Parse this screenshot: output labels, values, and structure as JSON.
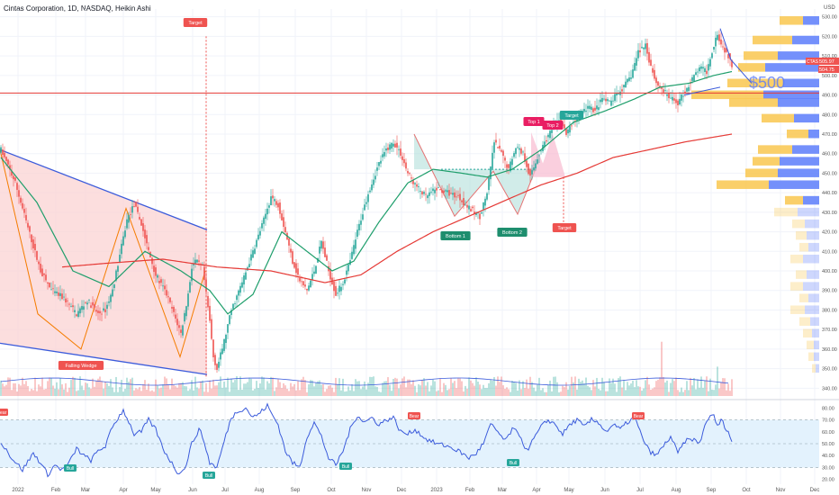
{
  "header": {
    "title": "Cintas Corporation, 1D, NASDAQ, Heikin Ashi"
  },
  "currency_label": "USD",
  "colors": {
    "up": "#26a69a",
    "down": "#ef5350",
    "sma_short": "#1e9e6b",
    "sma_long": "#e53935",
    "pattern_fill": "#fbd3d3",
    "trendline": "#3b5bdb",
    "vp_up": "#f9c74f",
    "vp_down": "#5c7cfa",
    "rsi_line": "#3b5bdb",
    "rsi_band": "#e3f2fd",
    "price_line": "#e53935"
  },
  "chart_data": [
    {
      "type": "candlestick",
      "title": "Cintas Corporation, 1D, NASDAQ, Heikin Ashi",
      "x_tick_labels": [
        "2022",
        "Feb",
        "Mar",
        "Apr",
        "May",
        "Jun",
        "Jul",
        "Aug",
        "Sep",
        "Oct",
        "Nov",
        "Dec",
        "2023",
        "Feb",
        "Mar",
        "Apr",
        "May",
        "Jun",
        "Jul",
        "Aug",
        "Sep",
        "Oct",
        "Nov",
        "Dec"
      ],
      "y_ticks": [
        340,
        350,
        360,
        370,
        380,
        390,
        400,
        410,
        420,
        430,
        440,
        450,
        460,
        470,
        480,
        490,
        500,
        510,
        520,
        530
      ],
      "ylim": [
        336,
        534
      ],
      "price_anchors": [
        [
          0,
          462
        ],
        [
          8,
          445
        ],
        [
          15,
          422
        ],
        [
          22,
          400
        ],
        [
          28,
          390
        ],
        [
          35,
          386
        ],
        [
          42,
          378
        ],
        [
          48,
          385
        ],
        [
          54,
          378
        ],
        [
          58,
          380
        ],
        [
          62,
          390
        ],
        [
          66,
          408
        ],
        [
          70,
          426
        ],
        [
          74,
          434
        ],
        [
          78,
          424
        ],
        [
          82,
          410
        ],
        [
          86,
          398
        ],
        [
          92,
          388
        ],
        [
          96,
          378
        ],
        [
          100,
          368
        ],
        [
          104,
          388
        ],
        [
          106,
          402
        ],
        [
          108,
          405
        ],
        [
          112,
          402
        ],
        [
          116,
          374
        ],
        [
          118,
          356
        ],
        [
          120,
          350
        ],
        [
          124,
          364
        ],
        [
          128,
          380
        ],
        [
          134,
          394
        ],
        [
          140,
          410
        ],
        [
          146,
          426
        ],
        [
          150,
          438
        ],
        [
          154,
          434
        ],
        [
          158,
          420
        ],
        [
          162,
          405
        ],
        [
          166,
          395
        ],
        [
          170,
          390
        ],
        [
          174,
          400
        ],
        [
          178,
          415
        ],
        [
          182,
          400
        ],
        [
          186,
          388
        ],
        [
          190,
          394
        ],
        [
          194,
          405
        ],
        [
          198,
          420
        ],
        [
          204,
          440
        ],
        [
          210,
          455
        ],
        [
          214,
          462
        ],
        [
          218,
          466
        ],
        [
          222,
          460
        ],
        [
          226,
          450
        ],
        [
          230,
          444
        ],
        [
          236,
          438
        ],
        [
          242,
          442
        ],
        [
          248,
          440
        ],
        [
          254,
          438
        ],
        [
          260,
          432
        ],
        [
          266,
          428
        ],
        [
          270,
          440
        ],
        [
          274,
          466
        ],
        [
          278,
          460
        ],
        [
          282,
          452
        ],
        [
          286,
          464
        ],
        [
          290,
          460
        ],
        [
          294,
          448
        ],
        [
          298,
          458
        ],
        [
          302,
          466
        ],
        [
          306,
          472
        ],
        [
          310,
          478
        ],
        [
          314,
          470
        ],
        [
          318,
          476
        ],
        [
          322,
          480
        ],
        [
          326,
          484
        ],
        [
          330,
          482
        ],
        [
          334,
          488
        ],
        [
          338,
          486
        ],
        [
          342,
          490
        ],
        [
          346,
          494
        ],
        [
          350,
          500
        ],
        [
          354,
          512
        ],
        [
          358,
          516
        ],
        [
          360,
          508
        ],
        [
          364,
          496
        ],
        [
          368,
          492
        ],
        [
          372,
          488
        ],
        [
          376,
          486
        ],
        [
          380,
          492
        ],
        [
          384,
          498
        ],
        [
          388,
          504
        ],
        [
          392,
          502
        ],
        [
          396,
          516
        ],
        [
          398,
          522
        ],
        [
          400,
          516
        ],
        [
          404,
          510
        ],
        [
          406,
          504
        ]
      ],
      "sma_50_anchors": [
        [
          0,
          458
        ],
        [
          20,
          435
        ],
        [
          40,
          400
        ],
        [
          60,
          392
        ],
        [
          80,
          410
        ],
        [
          100,
          400
        ],
        [
          116,
          390
        ],
        [
          126,
          378
        ],
        [
          140,
          388
        ],
        [
          156,
          420
        ],
        [
          170,
          410
        ],
        [
          184,
          400
        ],
        [
          196,
          405
        ],
        [
          210,
          425
        ],
        [
          226,
          445
        ],
        [
          240,
          452
        ],
        [
          256,
          450
        ],
        [
          270,
          448
        ],
        [
          284,
          452
        ],
        [
          300,
          462
        ],
        [
          318,
          476
        ],
        [
          336,
          482
        ],
        [
          352,
          488
        ],
        [
          366,
          494
        ],
        [
          382,
          496
        ],
        [
          396,
          500
        ],
        [
          406,
          502
        ]
      ],
      "sma_200_anchors": [
        [
          34,
          402
        ],
        [
          60,
          404
        ],
        [
          90,
          406
        ],
        [
          120,
          402
        ],
        [
          150,
          400
        ],
        [
          180,
          394
        ],
        [
          200,
          398
        ],
        [
          220,
          410
        ],
        [
          240,
          420
        ],
        [
          260,
          428
        ],
        [
          280,
          436
        ],
        [
          300,
          444
        ],
        [
          320,
          450
        ],
        [
          340,
          458
        ],
        [
          360,
          462
        ],
        [
          380,
          466
        ],
        [
          406,
          470
        ]
      ],
      "volume_profile": {
        "levels": [
          528,
          518,
          510,
          504,
          496,
          490,
          486,
          478,
          470,
          462,
          456,
          450,
          444,
          436,
          430,
          424,
          418,
          412,
          406,
          398,
          392,
          386,
          380,
          374,
          368,
          362,
          356,
          350
        ],
        "up_volume": [
          26,
          44,
          38,
          30,
          62,
          80,
          54,
          36,
          24,
          38,
          30,
          36,
          58,
          20,
          26,
          14,
          12,
          10,
          14,
          12,
          14,
          10,
          16,
          12,
          10,
          8,
          6,
          4
        ],
        "down_volume": [
          18,
          30,
          46,
          60,
          40,
          62,
          46,
          28,
          12,
          30,
          44,
          46,
          56,
          18,
          24,
          16,
          14,
          12,
          18,
          14,
          18,
          12,
          16,
          10,
          8,
          6,
          6,
          4
        ]
      },
      "pattern_labels": {
        "target_top": "Target",
        "falling_wedge": "Falling Wedge",
        "top1": "Top 1",
        "top2": "Top 2",
        "target_mid": "Target",
        "bottom1": "Bottom 1",
        "bottom2": "Bottom 2",
        "target_low": "Target"
      },
      "annotation_text": "$500",
      "horizontal_line": 491,
      "price_label_1": "505.97",
      "price_label_2": "504.75",
      "ticker_label": "CTAS"
    },
    {
      "type": "line",
      "name": "RSI",
      "y_ticks": [
        20,
        30,
        40,
        50,
        60,
        70,
        80
      ],
      "ylim": [
        16,
        84
      ],
      "band": [
        30,
        70
      ],
      "rsi_anchors": [
        [
          0,
          52
        ],
        [
          6,
          38
        ],
        [
          12,
          28
        ],
        [
          18,
          42
        ],
        [
          22,
          34
        ],
        [
          26,
          24
        ],
        [
          30,
          32
        ],
        [
          34,
          28
        ],
        [
          38,
          34
        ],
        [
          42,
          46
        ],
        [
          46,
          40
        ],
        [
          50,
          36
        ],
        [
          54,
          44
        ],
        [
          58,
          48
        ],
        [
          62,
          64
        ],
        [
          66,
          74
        ],
        [
          68,
          78
        ],
        [
          70,
          72
        ],
        [
          74,
          58
        ],
        [
          78,
          60
        ],
        [
          82,
          70
        ],
        [
          86,
          62
        ],
        [
          90,
          46
        ],
        [
          94,
          36
        ],
        [
          98,
          26
        ],
        [
          102,
          28
        ],
        [
          106,
          50
        ],
        [
          110,
          62
        ],
        [
          112,
          56
        ],
        [
          116,
          34
        ],
        [
          120,
          30
        ],
        [
          124,
          52
        ],
        [
          128,
          72
        ],
        [
          132,
          78
        ],
        [
          136,
          80
        ],
        [
          140,
          72
        ],
        [
          144,
          76
        ],
        [
          148,
          82
        ],
        [
          150,
          76
        ],
        [
          154,
          66
        ],
        [
          158,
          44
        ],
        [
          162,
          34
        ],
        [
          166,
          30
        ],
        [
          170,
          56
        ],
        [
          174,
          68
        ],
        [
          178,
          56
        ],
        [
          182,
          38
        ],
        [
          186,
          32
        ],
        [
          190,
          44
        ],
        [
          194,
          62
        ],
        [
          198,
          74
        ],
        [
          202,
          68
        ],
        [
          206,
          72
        ],
        [
          210,
          66
        ],
        [
          214,
          70
        ],
        [
          218,
          72
        ],
        [
          222,
          60
        ],
        [
          226,
          58
        ],
        [
          230,
          62
        ],
        [
          236,
          54
        ],
        [
          242,
          50
        ],
        [
          248,
          48
        ],
        [
          254,
          44
        ],
        [
          260,
          38
        ],
        [
          264,
          42
        ],
        [
          268,
          50
        ],
        [
          272,
          66
        ],
        [
          276,
          60
        ],
        [
          280,
          52
        ],
        [
          284,
          62
        ],
        [
          288,
          58
        ],
        [
          292,
          44
        ],
        [
          296,
          54
        ],
        [
          300,
          64
        ],
        [
          304,
          70
        ],
        [
          308,
          66
        ],
        [
          312,
          58
        ],
        [
          316,
          66
        ],
        [
          320,
          70
        ],
        [
          324,
          64
        ],
        [
          328,
          70
        ],
        [
          332,
          68
        ],
        [
          336,
          60
        ],
        [
          340,
          66
        ],
        [
          344,
          62
        ],
        [
          348,
          68
        ],
        [
          352,
          72
        ],
        [
          356,
          56
        ],
        [
          360,
          44
        ],
        [
          364,
          40
        ],
        [
          368,
          48
        ],
        [
          372,
          56
        ],
        [
          376,
          42
        ],
        [
          380,
          52
        ],
        [
          384,
          54
        ],
        [
          388,
          50
        ],
        [
          392,
          70
        ],
        [
          396,
          74
        ],
        [
          398,
          64
        ],
        [
          400,
          70
        ],
        [
          404,
          60
        ],
        [
          406,
          52
        ]
      ],
      "signals": {
        "bull1": "Bull",
        "bull2": "Bull",
        "bull3": "Bull",
        "bull4": "Bull",
        "bear1": "Bear",
        "bear2": "Bear"
      }
    }
  ]
}
